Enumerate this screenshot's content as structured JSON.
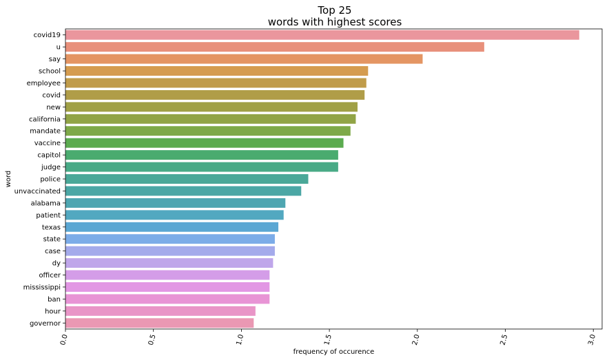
{
  "chart_data": {
    "type": "bar",
    "orientation": "horizontal",
    "title_lines": [
      "Top 25",
      "words with highest  scores"
    ],
    "xlabel": "frequency of occurence",
    "ylabel": "word",
    "xlim": [
      0,
      3.05
    ],
    "xticks": [
      0.0,
      0.5,
      1.0,
      1.5,
      2.0,
      2.5,
      3.0
    ],
    "xtick_labels": [
      "0.0",
      "0.5",
      "1.0",
      "1.5",
      "2.0",
      "2.5",
      "3.0"
    ],
    "grid": false,
    "categories": [
      "covid19",
      "u",
      "say",
      "school",
      "employee",
      "covid",
      "new",
      "california",
      "mandate",
      "vaccine",
      "capitol",
      "judge",
      "police",
      "unvaccinated",
      "alabama",
      "patient",
      "texas",
      "state",
      "case",
      "dy",
      "officer",
      "mississippi",
      "ban",
      "hour",
      "governor"
    ],
    "values": [
      2.92,
      2.38,
      2.03,
      1.72,
      1.71,
      1.7,
      1.66,
      1.65,
      1.62,
      1.58,
      1.55,
      1.55,
      1.38,
      1.34,
      1.25,
      1.24,
      1.21,
      1.19,
      1.19,
      1.18,
      1.16,
      1.16,
      1.16,
      1.08,
      1.07
    ],
    "colors": [
      "#ea969d",
      "#e8907b",
      "#e49563",
      "#d59c4f",
      "#c09c4a",
      "#b09d48",
      "#a0a046",
      "#91a446",
      "#7ea948",
      "#5bab4f",
      "#4aab6f",
      "#48aa86",
      "#4aa898",
      "#4ba7a5",
      "#4ea6b1",
      "#52a8c0",
      "#5ba7d3",
      "#7cace8",
      "#a4aaeb",
      "#bfa6ea",
      "#d49de8",
      "#e297e4",
      "#e894d5",
      "#e995c7",
      "#ea98b3"
    ]
  }
}
